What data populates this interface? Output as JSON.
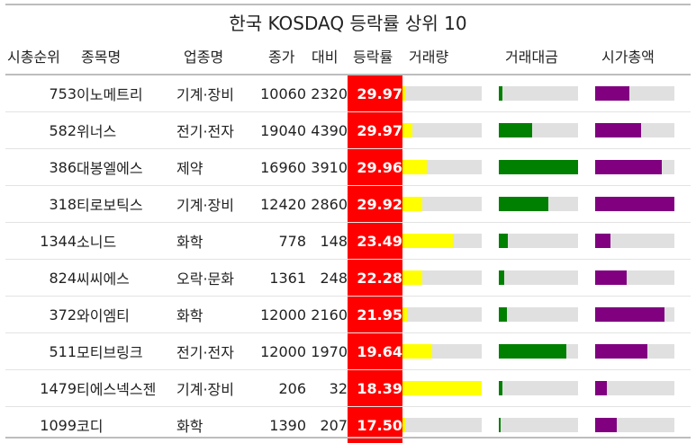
{
  "chart_data": {
    "type": "table",
    "title": "한국 KOSDAQ 등락률 상위 10",
    "columns": [
      "시총순위",
      "종목명",
      "업종명",
      "종가",
      "대비",
      "등락률",
      "거래량",
      "거래대금",
      "시가총액"
    ],
    "bar_colors": {
      "거래량": "#ffff00",
      "거래대금": "#008000",
      "시가총액": "#800080"
    },
    "highlight_color": "#ff0000",
    "bar_scale": "fraction of column maximum",
    "rows": [
      {
        "rank": "753",
        "name": "이노메트리",
        "sector": "기계·장비",
        "close": "10060",
        "change": "2320",
        "rate": "29.97",
        "volume": 0.03,
        "value": 0.05,
        "mcap": 0.43
      },
      {
        "rank": "582",
        "name": "위너스",
        "sector": "전기·전자",
        "close": "19040",
        "change": "4390",
        "rate": "29.97",
        "volume": 0.12,
        "value": 0.42,
        "mcap": 0.58
      },
      {
        "rank": "386",
        "name": "대봉엘에스",
        "sector": "제약",
        "close": "16960",
        "change": "3910",
        "rate": "29.96",
        "volume": 0.31,
        "value": 1.0,
        "mcap": 0.84
      },
      {
        "rank": "318",
        "name": "티로보틱스",
        "sector": "기계·장비",
        "close": "12420",
        "change": "2860",
        "rate": "29.92",
        "volume": 0.25,
        "value": 0.63,
        "mcap": 1.0
      },
      {
        "rank": "1344",
        "name": "소니드",
        "sector": "화학",
        "close": "778",
        "change": "148",
        "rate": "23.49",
        "volume": 0.64,
        "value": 0.11,
        "mcap": 0.19
      },
      {
        "rank": "824",
        "name": "씨씨에스",
        "sector": "오락·문화",
        "close": "1361",
        "change": "248",
        "rate": "22.28",
        "volume": 0.25,
        "value": 0.07,
        "mcap": 0.4
      },
      {
        "rank": "372",
        "name": "와이엠티",
        "sector": "화학",
        "close": "12000",
        "change": "2160",
        "rate": "21.95",
        "volume": 0.06,
        "value": 0.1,
        "mcap": 0.88
      },
      {
        "rank": "511",
        "name": "모티브링크",
        "sector": "전기·전자",
        "close": "12000",
        "change": "1970",
        "rate": "19.64",
        "volume": 0.37,
        "value": 0.85,
        "mcap": 0.66
      },
      {
        "rank": "1479",
        "name": "티에스넥스젠",
        "sector": "기계·장비",
        "close": "206",
        "change": "32",
        "rate": "18.39",
        "volume": 1.0,
        "value": 0.05,
        "mcap": 0.15
      },
      {
        "rank": "1099",
        "name": "코디",
        "sector": "화학",
        "close": "1390",
        "change": "207",
        "rate": "17.50",
        "volume": 0.03,
        "value": 0.02,
        "mcap": 0.27
      }
    ]
  }
}
